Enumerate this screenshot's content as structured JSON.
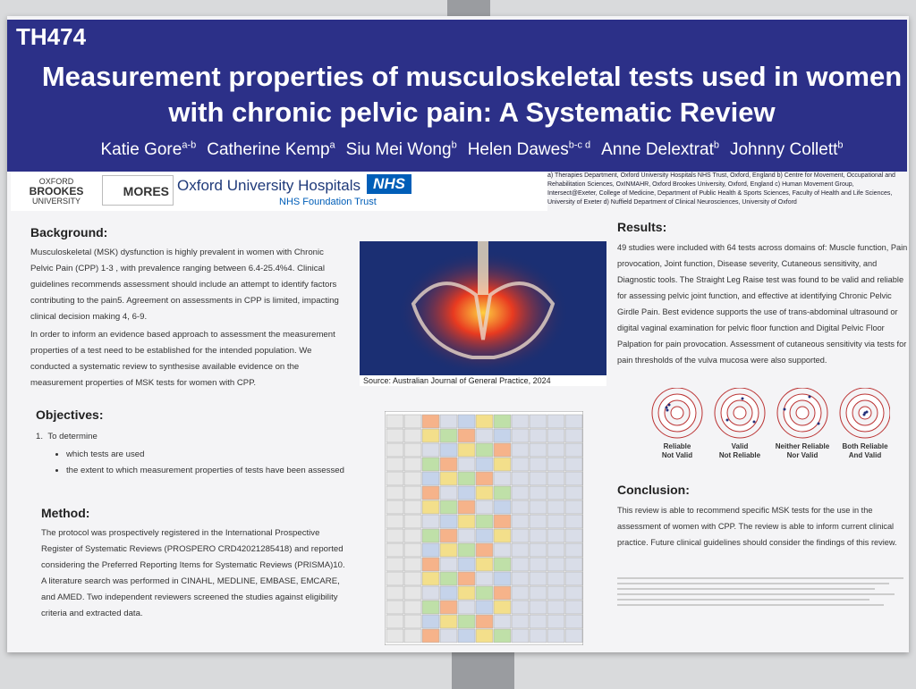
{
  "header": {
    "code": "TH474",
    "title": "Measurement properties of musculoskeletal tests used in women with chronic pelvic pain:  A Systematic Review",
    "authors": [
      {
        "name": "Katie Gore",
        "affiliation": "a-b"
      },
      {
        "name": "Catherine Kemp",
        "affiliation": "a"
      },
      {
        "name": "Siu Mei Wong",
        "affiliation": "b"
      },
      {
        "name": "Helen Dawes",
        "affiliation": "b-c d"
      },
      {
        "name": "Anne Delextrat",
        "affiliation": "b"
      },
      {
        "name": "Johnny Collett",
        "affiliation": "b"
      }
    ],
    "logos": {
      "brookes": [
        "OXFORD",
        "BROOKES",
        "UNIVERSITY"
      ],
      "mores": "MORES",
      "ouh": "Oxford University Hospitals",
      "nhs": "NHS",
      "ouh_trust": "NHS Foundation Trust"
    },
    "affiliations": "a) Therapies Department, Oxford University Hospitals NHS Trust, Oxford, England b) Centre for Movement, Occupational and Rehabilitation Sciences, OxINMAHR, Oxford Brookes University, Oxford, England c) Human Movement Group, Intersect@Exeter, College of Medicine, Department of Public Health & Sports Sciences, Faculty of Health and Life Sciences, University of Exeter d) Nuffield Department of Clinical Neurosciences, University of Oxford"
  },
  "background": {
    "heading": "Background:",
    "paragraphs": [
      "Musculoskeletal (MSK) dysfunction is highly prevalent in women with Chronic Pelvic Pain (CPP) 1-3 , with prevalence ranging between 6.4-25.4%4. Clinical guidelines recommends assessment should include an attempt to identify factors contributing to the pain5. Agreement on assessments in CPP is limited, impacting clinical decision making 4, 6-9.",
      "In order to inform an evidence based approach to assessment the measurement properties of a test need to be established for the intended population. We conducted a systematic review to synthesise available evidence on the measurement properties of MSK tests for women with CPP."
    ]
  },
  "objectives": {
    "heading": "Objectives:",
    "number": "1.",
    "intro": "To determine",
    "items": [
      "which tests are used",
      "the extent to which measurement properties of tests have been assessed"
    ]
  },
  "method": {
    "heading": "Method:",
    "text": "The protocol was prospectively registered in the International Prospective Register of Systematic Reviews (PROSPERO CRD42021285418) and reported considering the Preferred Reporting Items for Systematic Reviews (PRISMA)10. A literature search was performed in CINAHL, MEDLINE, EMBASE, EMCARE, and AMED. Two independent reviewers screened the studies against eligibility criteria and extracted data."
  },
  "figure": {
    "caption": "Source: Australian Journal of General Practice, 2024"
  },
  "results": {
    "heading": "Results:",
    "text": "49 studies were included with 64 tests across domains of: Muscle function, Pain provocation, Joint function, Disease severity, Cutaneous sensitivity, and Diagnostic tools. The Straight Leg Raise test was found to be valid and reliable for assessing pelvic joint function, and effective at identifying Chronic Pelvic Girdle Pain. Best evidence supports the use of trans-abdominal ultrasound or digital vaginal examination for pelvic floor function and Digital Pelvic Floor Palpation for pain provocation. Assessment of cutaneous sensitivity via tests for pain thresholds of the vulva mucosa were also supported.",
    "targets": [
      [
        "Reliable",
        "Not Valid"
      ],
      [
        "Valid",
        "Not Reliable"
      ],
      [
        "Neither Reliable",
        "Nor Valid"
      ],
      [
        "Both Reliable",
        "And Valid"
      ]
    ]
  },
  "conclusion": {
    "heading": "Conclusion:",
    "text": "This review is able to recommend specific MSK tests for the use in the assessment of women with CPP. The review is able to inform current clinical practice. Future clinical guidelines should consider the findings of this review."
  }
}
